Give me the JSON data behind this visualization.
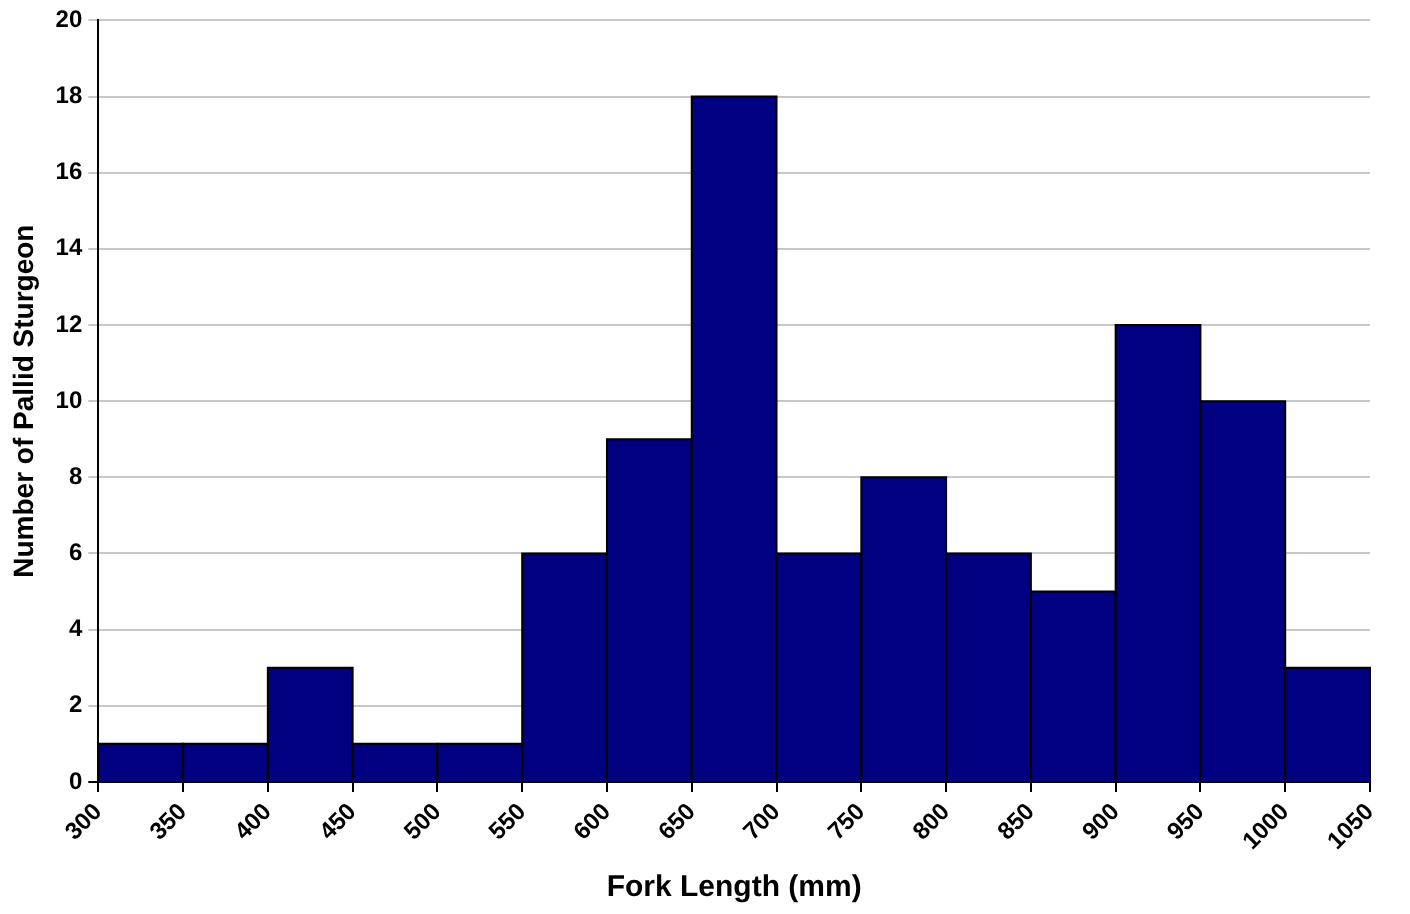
{
  "chart_data": {
    "type": "histogram",
    "xlabel": "Fork Length (mm)",
    "ylabel": "Number of Pallid Sturgeon",
    "bins": [
      300,
      350,
      400,
      450,
      500,
      550,
      600,
      650,
      700,
      750,
      800,
      850,
      900,
      950,
      1000,
      1050
    ],
    "values": [
      1,
      1,
      3,
      1,
      1,
      6,
      9,
      18,
      6,
      8,
      6,
      5,
      12,
      10,
      3
    ],
    "color": "#000080",
    "xlim": [
      300,
      1050
    ],
    "xticks": [
      300,
      350,
      400,
      450,
      500,
      550,
      600,
      650,
      700,
      750,
      800,
      850,
      900,
      950,
      1000,
      1050
    ],
    "ylim": [
      0,
      20
    ],
    "yticks": [
      0,
      2,
      4,
      6,
      8,
      10,
      12,
      14,
      16,
      18,
      20
    ],
    "grid": "y",
    "legend": false
  }
}
